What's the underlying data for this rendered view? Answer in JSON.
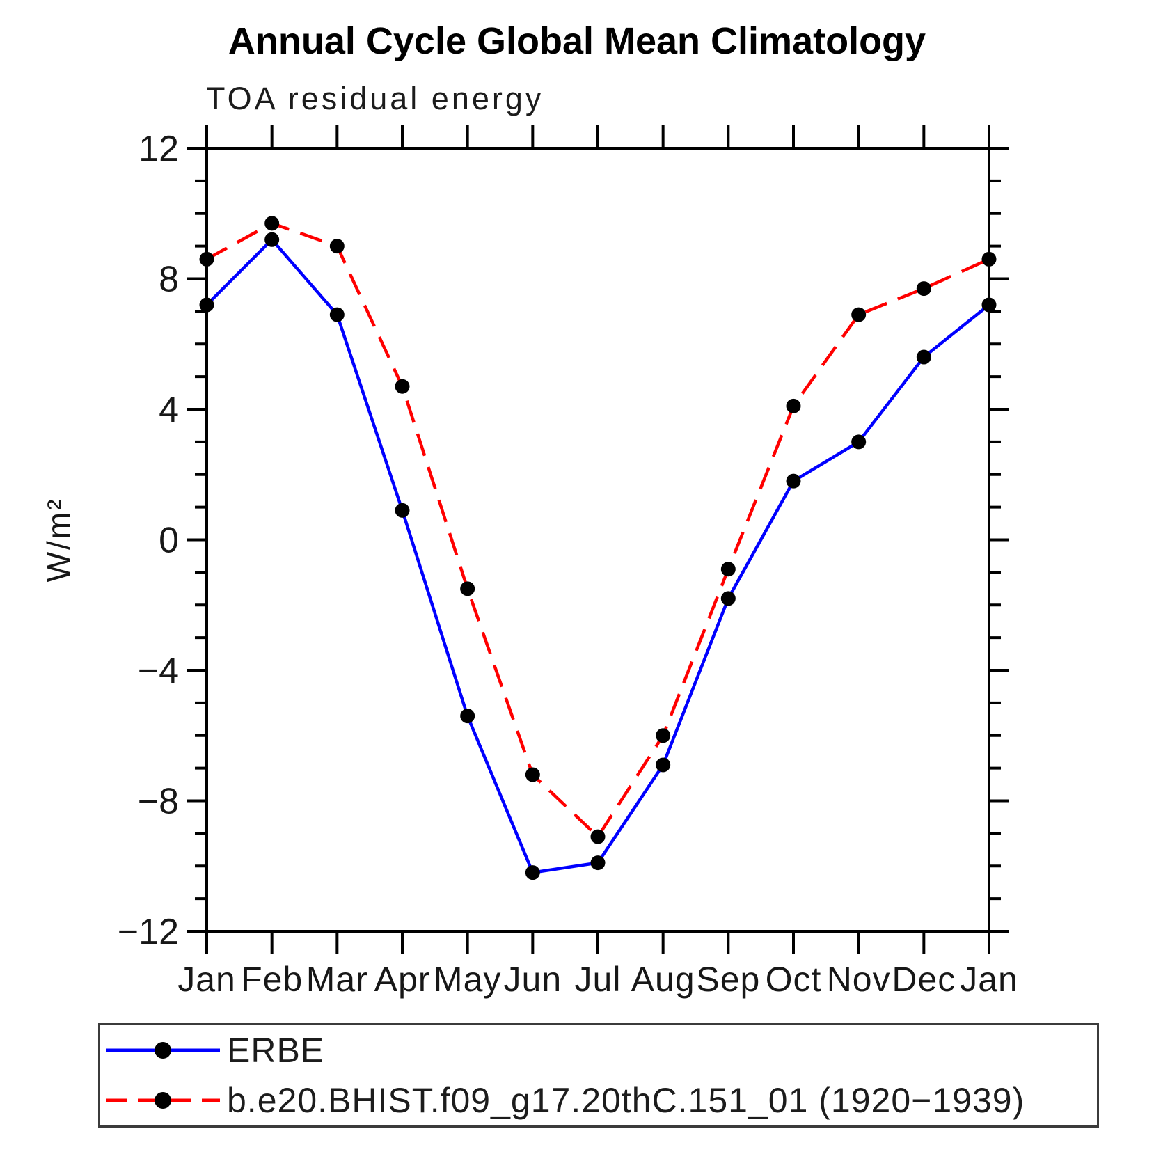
{
  "chart_data": {
    "type": "line",
    "title": "Annual Cycle Global Mean Climatology",
    "subtitle": "TOA residual energy",
    "ylabel": "W/m²",
    "xlabel": "",
    "ylim": [
      -12,
      12
    ],
    "y_major_ticks": [
      -12,
      -8,
      -4,
      0,
      4,
      8,
      12
    ],
    "y_tick_labels": [
      "−12",
      "−8",
      "−4",
      "0",
      "4",
      "8",
      "12"
    ],
    "y_minor_step": 1,
    "categories": [
      "Jan",
      "Feb",
      "Mar",
      "Apr",
      "May",
      "Jun",
      "Jul",
      "Aug",
      "Sep",
      "Oct",
      "Nov",
      "Dec",
      "Jan"
    ],
    "grid": false,
    "legend_position": "bottom-left",
    "axis_color": "#000000",
    "series": [
      {
        "name": "ERBE",
        "line_color": "#0000ff",
        "line_style": "solid",
        "marker": "filled-circle",
        "marker_color": "#000000",
        "values": [
          7.2,
          9.2,
          6.9,
          0.9,
          -5.4,
          -10.2,
          -9.9,
          -6.9,
          -1.8,
          1.8,
          3.0,
          5.6,
          7.2
        ]
      },
      {
        "name": "b.e20.BHIST.f09_g17.20thC.151_01 (1920−1939)",
        "line_color": "#ff0000",
        "line_style": "dashed",
        "marker": "filled-circle",
        "marker_color": "#000000",
        "values": [
          8.6,
          9.7,
          9.0,
          4.7,
          -1.5,
          -7.2,
          -9.1,
          -6.0,
          -0.9,
          4.1,
          6.9,
          7.7,
          8.6
        ]
      }
    ]
  }
}
